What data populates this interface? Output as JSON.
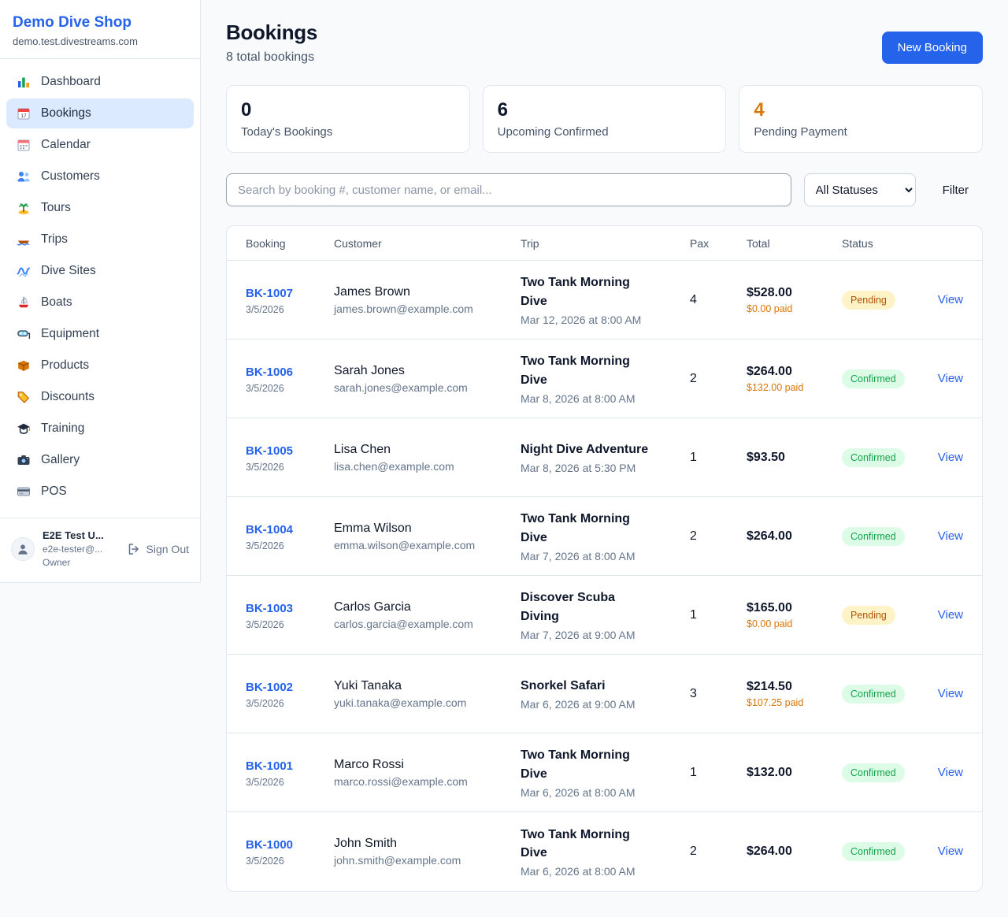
{
  "colors": {
    "accent": "#2563eb",
    "pending_text": "#b45309",
    "pending_bg": "#fef3c7",
    "confirmed_text": "#16a34a",
    "confirmed_bg": "#dcfce7",
    "page_bg": "#f8fafc"
  },
  "sidebar": {
    "brand": {
      "name": "Demo Dive Shop",
      "domain": "demo.test.divestreams.com"
    },
    "items": [
      {
        "label": "Dashboard",
        "icon": "dashboard-icon",
        "state": ""
      },
      {
        "label": "Bookings",
        "icon": "bookings-icon",
        "state": "active"
      },
      {
        "label": "Calendar",
        "icon": "calendar-icon",
        "state": ""
      },
      {
        "label": "Customers",
        "icon": "customers-icon",
        "state": ""
      },
      {
        "label": "Tours",
        "icon": "tours-icon",
        "state": ""
      },
      {
        "label": "Trips",
        "icon": "trips-icon",
        "state": ""
      },
      {
        "label": "Dive Sites",
        "icon": "dive-sites-icon",
        "state": ""
      },
      {
        "label": "Boats",
        "icon": "boats-icon",
        "state": ""
      },
      {
        "label": "Equipment",
        "icon": "equipment-icon",
        "state": ""
      },
      {
        "label": "Products",
        "icon": "products-icon",
        "state": ""
      },
      {
        "label": "Discounts",
        "icon": "discounts-icon",
        "state": ""
      },
      {
        "label": "Training",
        "icon": "training-icon",
        "state": ""
      },
      {
        "label": "Gallery",
        "icon": "gallery-icon",
        "state": ""
      },
      {
        "label": "POS",
        "icon": "pos-icon",
        "state": ""
      }
    ],
    "account": {
      "name": "E2E Test U...",
      "email": "e2e-tester@...",
      "role": "Owner",
      "avatar_icon": "user-icon",
      "signout_label": "Sign Out",
      "signout_icon": "logout-icon"
    }
  },
  "header": {
    "title": "Bookings",
    "subtitle": "8 total bookings",
    "new_booking_label": "New Booking"
  },
  "stats": [
    {
      "value": "0",
      "label": "Today's Bookings",
      "accent": ""
    },
    {
      "value": "6",
      "label": "Upcoming Confirmed",
      "accent": ""
    },
    {
      "value": "4",
      "label": "Pending Payment",
      "accent": "accent-orange"
    }
  ],
  "filters": {
    "search_placeholder": "Search by booking #, customer name, or email...",
    "status_value": "All Statuses",
    "filter_label": "Filter"
  },
  "table": {
    "columns": [
      "Booking",
      "Customer",
      "Trip",
      "Pax",
      "Total",
      "Status"
    ],
    "view_label": "View",
    "rows": [
      {
        "booking_id": "BK-1007",
        "booking_date": "3/5/2026",
        "customer_name": "James Brown",
        "customer_email": "james.brown@example.com",
        "trip_name": "Two Tank Morning Dive",
        "trip_date": "Mar 12, 2026 at 8:00 AM",
        "pax": "4",
        "total": "$528.00",
        "paid": "$0.00 paid",
        "status": "Pending",
        "status_class": "pending"
      },
      {
        "booking_id": "BK-1006",
        "booking_date": "3/5/2026",
        "customer_name": "Sarah Jones",
        "customer_email": "sarah.jones@example.com",
        "trip_name": "Two Tank Morning Dive",
        "trip_date": "Mar 8, 2026 at 8:00 AM",
        "pax": "2",
        "total": "$264.00",
        "paid": "$132.00 paid",
        "status": "Confirmed",
        "status_class": "confirmed"
      },
      {
        "booking_id": "BK-1005",
        "booking_date": "3/5/2026",
        "customer_name": "Lisa Chen",
        "customer_email": "lisa.chen@example.com",
        "trip_name": "Night Dive Adventure",
        "trip_date": "Mar 8, 2026 at 5:30 PM",
        "pax": "1",
        "total": "$93.50",
        "paid": "",
        "status": "Confirmed",
        "status_class": "confirmed"
      },
      {
        "booking_id": "BK-1004",
        "booking_date": "3/5/2026",
        "customer_name": "Emma Wilson",
        "customer_email": "emma.wilson@example.com",
        "trip_name": "Two Tank Morning Dive",
        "trip_date": "Mar 7, 2026 at 8:00 AM",
        "pax": "2",
        "total": "$264.00",
        "paid": "",
        "status": "Confirmed",
        "status_class": "confirmed"
      },
      {
        "booking_id": "BK-1003",
        "booking_date": "3/5/2026",
        "customer_name": "Carlos Garcia",
        "customer_email": "carlos.garcia@example.com",
        "trip_name": "Discover Scuba Diving",
        "trip_date": "Mar 7, 2026 at 9:00 AM",
        "pax": "1",
        "total": "$165.00",
        "paid": "$0.00 paid",
        "status": "Pending",
        "status_class": "pending"
      },
      {
        "booking_id": "BK-1002",
        "booking_date": "3/5/2026",
        "customer_name": "Yuki Tanaka",
        "customer_email": "yuki.tanaka@example.com",
        "trip_name": "Snorkel Safari",
        "trip_date": "Mar 6, 2026 at 9:00 AM",
        "pax": "3",
        "total": "$214.50",
        "paid": "$107.25 paid",
        "status": "Confirmed",
        "status_class": "confirmed"
      },
      {
        "booking_id": "BK-1001",
        "booking_date": "3/5/2026",
        "customer_name": "Marco Rossi",
        "customer_email": "marco.rossi@example.com",
        "trip_name": "Two Tank Morning Dive",
        "trip_date": "Mar 6, 2026 at 8:00 AM",
        "pax": "1",
        "total": "$132.00",
        "paid": "",
        "status": "Confirmed",
        "status_class": "confirmed"
      },
      {
        "booking_id": "BK-1000",
        "booking_date": "3/5/2026",
        "customer_name": "John Smith",
        "customer_email": "john.smith@example.com",
        "trip_name": "Two Tank Morning Dive",
        "trip_date": "Mar 6, 2026 at 8:00 AM",
        "pax": "2",
        "total": "$264.00",
        "paid": "",
        "status": "Confirmed",
        "status_class": "confirmed"
      }
    ]
  }
}
